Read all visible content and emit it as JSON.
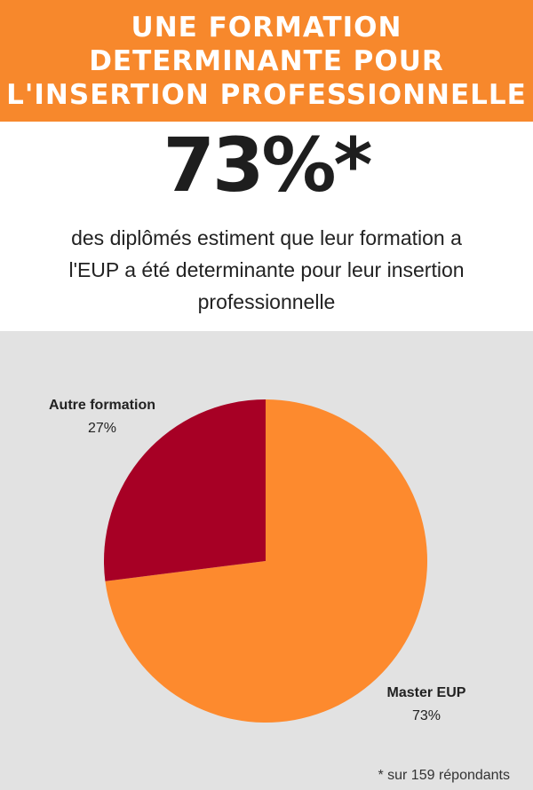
{
  "banner": {
    "lines": [
      "UNE FORMATION",
      "DETERMINANTE POUR",
      "L'INSERTION PROFESSIONNELLE"
    ]
  },
  "headline_stat": "73%*",
  "subtitle": {
    "lines": [
      "des diplômés estiment que leur formation a",
      "l'EUP  a été determinante pour leur insertion",
      "professionnelle"
    ]
  },
  "footnote": "* sur 159 répondants",
  "colors": {
    "banner": "#f7882c",
    "master_eup": "#fd8a2e",
    "autre_formation": "#a70025",
    "chart_background": "#e2e2e2"
  },
  "chart_data": {
    "type": "pie",
    "series": [
      {
        "name": "Master EUP",
        "label": "73%",
        "value": 73,
        "color": "#fd8a2e"
      },
      {
        "name": "Autre formation",
        "label": "27%",
        "value": 27,
        "color": "#a70025"
      }
    ]
  }
}
